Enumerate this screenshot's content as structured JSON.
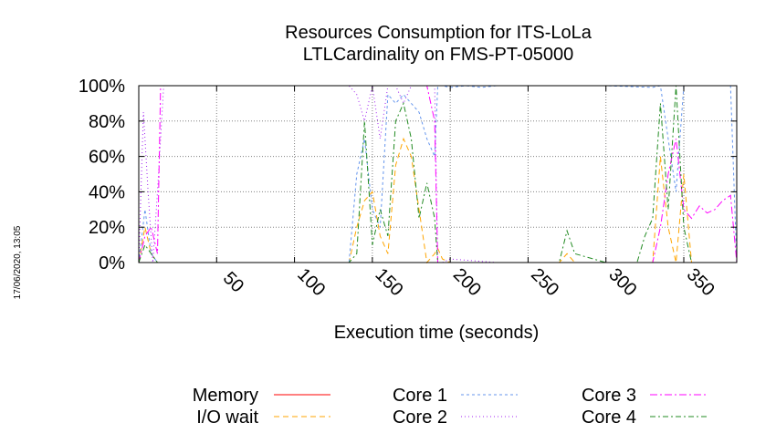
{
  "chart_data": {
    "type": "line",
    "title": [
      "Resources Consumption for ITS-LoLa",
      "LTLCardinality on FMS-PT-05000"
    ],
    "xlabel": "Execution time (seconds)",
    "ylabel": "",
    "xlim": [
      0,
      384
    ],
    "ylim": [
      0,
      100
    ],
    "xticks": [
      50,
      100,
      150,
      200,
      250,
      300,
      350
    ],
    "yticks": [
      0,
      20,
      40,
      60,
      80,
      100
    ],
    "ytick_labels": [
      "0%",
      "20%",
      "40%",
      "60%",
      "80%",
      "100%"
    ],
    "grid": true,
    "legend_position": "bottom",
    "timestamp": "17/06/2020, 13:05",
    "series": [
      {
        "name": "Memory",
        "color": "#ff0000",
        "dash": "",
        "x": [
          0,
          384
        ],
        "y": [
          0,
          0
        ]
      },
      {
        "name": "I/O wait",
        "color": "#ffa500",
        "dash": "6,4",
        "x": [
          0,
          4,
          8,
          12,
          30,
          60,
          100,
          120,
          135,
          140,
          145,
          150,
          155,
          160,
          165,
          170,
          175,
          180,
          185,
          190,
          192,
          195,
          200,
          250,
          270,
          275,
          280,
          300,
          320,
          330,
          335,
          340,
          345,
          350,
          355,
          360,
          370,
          380,
          384
        ],
        "y": [
          0,
          20,
          5,
          0,
          0,
          0,
          0,
          0,
          0,
          20,
          35,
          40,
          15,
          5,
          55,
          70,
          60,
          30,
          0,
          5,
          8,
          2,
          0,
          0,
          0,
          5,
          0,
          0,
          0,
          0,
          60,
          20,
          0,
          50,
          0,
          0,
          0,
          0,
          0
        ]
      },
      {
        "name": "Core 1",
        "color": "#6495ed",
        "dash": "3,3",
        "x": [
          0,
          4,
          8,
          12,
          30,
          60,
          100,
          120,
          135,
          140,
          145,
          150,
          155,
          160,
          165,
          170,
          175,
          180,
          185,
          190,
          192,
          195,
          200,
          210,
          220,
          230,
          250,
          300,
          330,
          335,
          340,
          345,
          350,
          355,
          360,
          370,
          380,
          384
        ],
        "y": [
          0,
          30,
          5,
          0,
          0,
          0,
          0,
          0,
          0,
          50,
          70,
          30,
          20,
          95,
          90,
          95,
          90,
          85,
          70,
          60,
          100,
          100,
          99,
          100,
          99,
          100,
          100,
          100,
          99,
          100,
          70,
          40,
          100,
          100,
          100,
          100,
          100,
          0
        ]
      },
      {
        "name": "Core 2",
        "color": "#a020f0",
        "dash": "1,3",
        "x": [
          0,
          3,
          6,
          9,
          12,
          16,
          20,
          60,
          100,
          120,
          135,
          140,
          145,
          150,
          155,
          160,
          165,
          170,
          175,
          180,
          185,
          190,
          192,
          195,
          200,
          230,
          250,
          300,
          340,
          350,
          360,
          370,
          380,
          384
        ],
        "y": [
          0,
          85,
          40,
          0,
          40,
          100,
          100,
          100,
          100,
          100,
          100,
          95,
          80,
          100,
          70,
          100,
          100,
          90,
          100,
          100,
          100,
          100,
          0,
          0,
          2,
          0,
          0,
          0,
          0,
          0,
          0,
          0,
          0,
          0
        ]
      },
      {
        "name": "Core 3",
        "color": "#ff00ff",
        "dash": "8,3,2,3",
        "x": [
          0,
          4,
          8,
          12,
          14,
          18,
          60,
          100,
          135,
          140,
          145,
          150,
          155,
          160,
          165,
          170,
          175,
          180,
          185,
          190,
          192,
          200,
          250,
          330,
          335,
          340,
          345,
          350,
          355,
          360,
          365,
          370,
          375,
          380,
          384
        ],
        "y": [
          0,
          15,
          20,
          5,
          100,
          100,
          100,
          100,
          100,
          100,
          100,
          100,
          100,
          100,
          100,
          100,
          100,
          100,
          100,
          80,
          0,
          0,
          0,
          0,
          20,
          50,
          70,
          30,
          25,
          32,
          28,
          30,
          35,
          38,
          0
        ]
      },
      {
        "name": "Core 4",
        "color": "#228b22",
        "dash": "6,3,2,3",
        "x": [
          0,
          4,
          8,
          12,
          30,
          60,
          100,
          120,
          135,
          140,
          145,
          150,
          155,
          160,
          165,
          170,
          175,
          180,
          185,
          190,
          192,
          195,
          200,
          250,
          270,
          275,
          280,
          300,
          320,
          325,
          330,
          335,
          340,
          345,
          350,
          355,
          360,
          370,
          380,
          384
        ],
        "y": [
          0,
          10,
          5,
          0,
          0,
          0,
          0,
          0,
          0,
          5,
          80,
          10,
          30,
          15,
          80,
          90,
          70,
          25,
          45,
          25,
          0,
          0,
          0,
          0,
          0,
          18,
          5,
          0,
          0,
          15,
          25,
          90,
          30,
          100,
          20,
          0,
          0,
          0,
          0,
          0
        ]
      }
    ]
  }
}
